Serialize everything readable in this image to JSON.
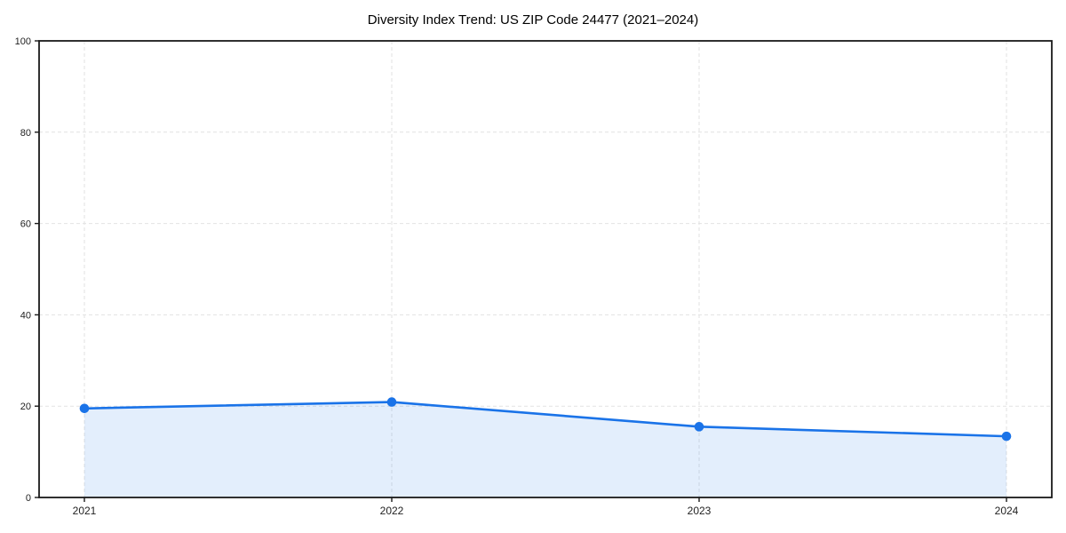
{
  "chart_data": {
    "type": "line",
    "title": "Diversity Index Trend: US ZIP Code 24477 (2021–2024)",
    "categories": [
      "2021",
      "2022",
      "2023",
      "2024"
    ],
    "series": [
      {
        "name": "Diversity Index",
        "values": [
          19.5,
          20.9,
          15.5,
          13.4
        ]
      }
    ],
    "xlabel": "",
    "ylabel": "",
    "ylim": [
      0,
      100
    ],
    "yticks": [
      0,
      20,
      40,
      60,
      80,
      100
    ],
    "grid": true,
    "grid_style": "dashed",
    "legend_position": "none",
    "marker": "circle",
    "area_fill": true
  },
  "colors": {
    "line": "#1a73e8",
    "marker": "#1a73e8",
    "area_fill": "rgba(26,115,232,0.12)",
    "gridline": "#e2e2e2",
    "axis_spine": "#1a1a1a",
    "tick_label": "#222222",
    "background": "#ffffff"
  }
}
